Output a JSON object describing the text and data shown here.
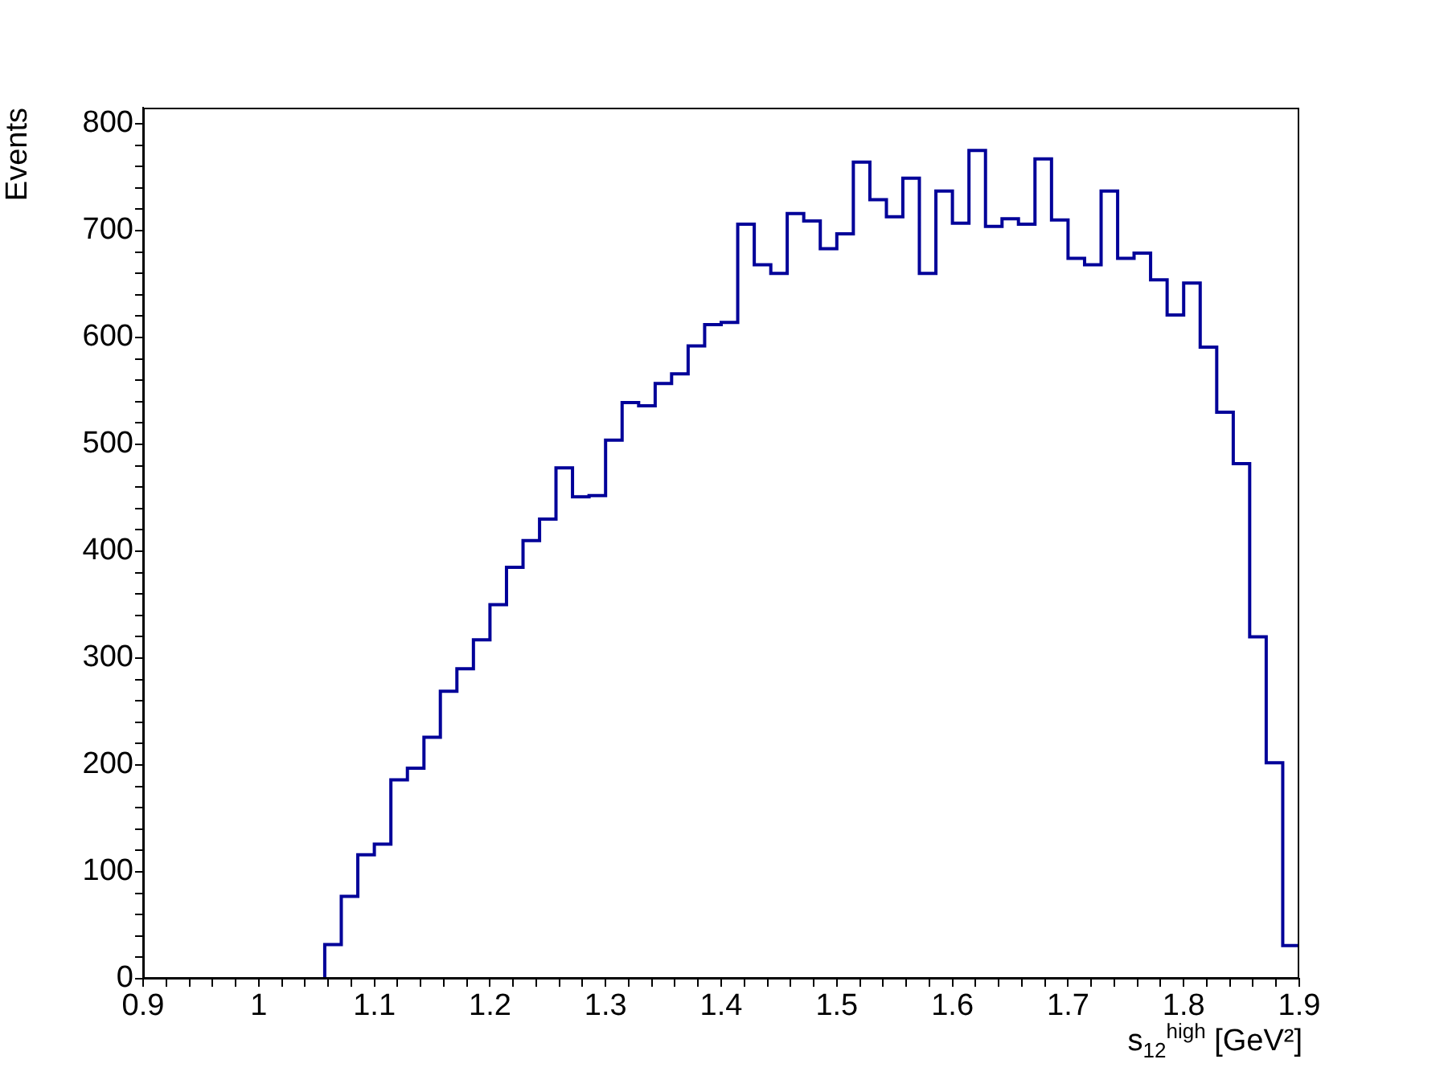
{
  "chart_data": {
    "type": "histogram",
    "xlabel": "s$_{12}$$^{high}$ [GeV²]",
    "ylabel": "Events",
    "color": "#000099",
    "bins": [
      0.9,
      0.9143,
      0.9286,
      0.9429,
      0.9571,
      0.9714,
      0.9857,
      1.0,
      1.0143,
      1.0286,
      1.0429,
      1.0571,
      1.0714,
      1.0857,
      1.1,
      1.1143,
      1.1286,
      1.1429,
      1.1571,
      1.1714,
      1.1857,
      1.2,
      1.2143,
      1.2286,
      1.2429,
      1.2571,
      1.2714,
      1.2857,
      1.3,
      1.3143,
      1.3286,
      1.3429,
      1.3571,
      1.3714,
      1.3857,
      1.4,
      1.4143,
      1.4286,
      1.4429,
      1.4571,
      1.4714,
      1.4857,
      1.5,
      1.5143,
      1.5286,
      1.5429,
      1.5571,
      1.5714,
      1.5857,
      1.6,
      1.6143,
      1.6286,
      1.6429,
      1.6571,
      1.6714,
      1.6857,
      1.7,
      1.7143,
      1.7286,
      1.7429,
      1.7571,
      1.7714,
      1.7857,
      1.8,
      1.8143,
      1.8286,
      1.8429,
      1.8571,
      1.8714,
      1.8857,
      1.9
    ],
    "values": [
      0,
      0,
      0,
      0,
      0,
      0,
      0,
      0,
      0,
      0,
      0,
      32,
      77,
      116,
      126,
      186,
      197,
      226,
      269,
      290,
      317,
      350,
      385,
      410,
      430,
      478,
      451,
      452,
      504,
      539,
      536,
      557,
      566,
      592,
      612,
      614,
      706,
      668,
      660,
      716,
      709,
      683,
      697,
      764,
      729,
      713,
      749,
      660,
      737,
      707,
      775,
      704,
      711,
      706,
      767,
      710,
      674,
      668,
      737,
      674,
      679,
      654,
      621,
      651,
      591,
      530,
      482,
      320,
      202,
      31
    ],
    "xlim": [
      0.9,
      1.9
    ],
    "xticks": [
      0.9,
      {
        "value": 0.92,
        "label": null
      },
      {
        "value": 0.94,
        "label": null
      },
      {
        "value": 0.96,
        "label": null
      },
      {
        "value": 0.98,
        "label": null
      },
      1,
      {
        "value": 1.02,
        "label": null
      },
      {
        "value": 1.04,
        "label": null
      },
      {
        "value": 1.06,
        "label": null
      },
      {
        "value": 1.08,
        "label": null
      },
      1.1,
      {
        "value": 1.12,
        "label": null
      },
      {
        "value": 1.14,
        "label": null
      },
      {
        "value": 1.16,
        "label": null
      },
      {
        "value": 1.18,
        "label": null
      },
      1.2,
      {
        "value": 1.22,
        "label": null
      },
      {
        "value": 1.24,
        "label": null
      },
      {
        "value": 1.26,
        "label": null
      },
      {
        "value": 1.28,
        "label": null
      },
      1.3,
      {
        "value": 1.32,
        "label": null
      },
      {
        "value": 1.34,
        "label": null
      },
      {
        "value": 1.36,
        "label": null
      },
      {
        "value": 1.38,
        "label": null
      },
      1.4,
      {
        "value": 1.42,
        "label": null
      },
      {
        "value": 1.44,
        "label": null
      },
      {
        "value": 1.46,
        "label": null
      },
      {
        "value": 1.48,
        "label": null
      },
      1.5,
      {
        "value": 1.52,
        "label": null
      },
      {
        "value": 1.54,
        "label": null
      },
      {
        "value": 1.56,
        "label": null
      },
      {
        "value": 1.58,
        "label": null
      },
      1.6,
      {
        "value": 1.62,
        "label": null
      },
      {
        "value": 1.64,
        "label": null
      },
      {
        "value": 1.66,
        "label": null
      },
      {
        "value": 1.68,
        "label": null
      },
      1.7,
      {
        "value": 1.72,
        "label": null
      },
      {
        "value": 1.74,
        "label": null
      },
      {
        "value": 1.76,
        "label": null
      },
      {
        "value": 1.78,
        "label": null
      },
      1.8,
      {
        "value": 1.82,
        "label": null
      },
      {
        "value": 1.84,
        "label": null
      },
      {
        "value": 1.86,
        "label": null
      },
      {
        "value": 1.88,
        "label": null
      },
      1.9
    ],
    "ylim": [
      0,
      815
    ],
    "yticks": [
      0,
      {
        "value": 20,
        "label": null
      },
      {
        "value": 40,
        "label": null
      },
      {
        "value": 60,
        "label": null
      },
      {
        "value": 80,
        "label": null
      },
      100,
      {
        "value": 120,
        "label": null
      },
      {
        "value": 140,
        "label": null
      },
      {
        "value": 160,
        "label": null
      },
      {
        "value": 180,
        "label": null
      },
      200,
      {
        "value": 220,
        "label": null
      },
      {
        "value": 240,
        "label": null
      },
      {
        "value": 260,
        "label": null
      },
      {
        "value": 280,
        "label": null
      },
      300,
      {
        "value": 320,
        "label": null
      },
      {
        "value": 340,
        "label": null
      },
      {
        "value": 360,
        "label": null
      },
      {
        "value": 380,
        "label": null
      },
      400,
      {
        "value": 420,
        "label": null
      },
      {
        "value": 440,
        "label": null
      },
      {
        "value": 460,
        "label": null
      },
      {
        "value": 480,
        "label": null
      },
      500,
      {
        "value": 520,
        "label": null
      },
      {
        "value": 540,
        "label": null
      },
      {
        "value": 560,
        "label": null
      },
      {
        "value": 580,
        "label": null
      },
      600,
      {
        "value": 620,
        "label": null
      },
      {
        "value": 640,
        "label": null
      },
      {
        "value": 660,
        "label": null
      },
      {
        "value": 680,
        "label": null
      },
      700,
      {
        "value": 720,
        "label": null
      },
      {
        "value": 740,
        "label": null
      },
      {
        "value": 760,
        "label": null
      },
      {
        "value": 780,
        "label": null
      },
      800
    ],
    "grid": false,
    "legend": false
  }
}
